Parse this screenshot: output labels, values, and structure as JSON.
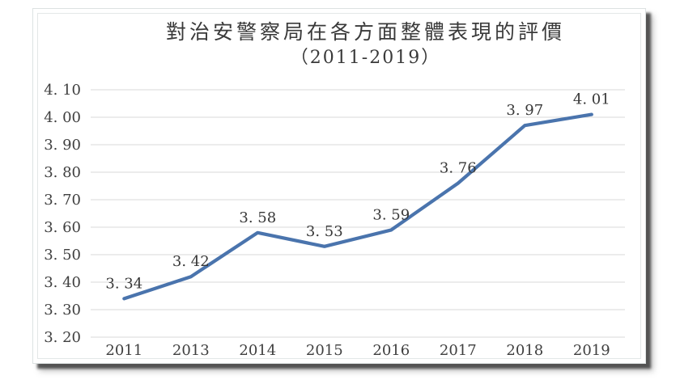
{
  "chart_data": {
    "type": "line",
    "title": "對治安警察局在各方面整體表現的評價",
    "subtitle": "（2011-2019）",
    "categories": [
      "2011",
      "2013",
      "2014",
      "2015",
      "2016",
      "2017",
      "2018",
      "2019"
    ],
    "values": [
      3.34,
      3.42,
      3.58,
      3.53,
      3.59,
      3.76,
      3.97,
      4.01
    ],
    "point_labels": [
      "3. 34",
      "3. 42",
      "3. 58",
      "3. 53",
      "3. 59",
      "3. 76",
      "3. 97",
      "4. 01"
    ],
    "y_ticks": [
      3.2,
      3.3,
      3.4,
      3.5,
      3.6,
      3.7,
      3.8,
      3.9,
      4.0,
      4.1
    ],
    "y_tick_labels": [
      "3. 20",
      "3. 30",
      "3. 40",
      "3. 50",
      "3. 60",
      "3. 70",
      "3. 80",
      "3. 90",
      "4. 00",
      "4. 10"
    ],
    "ylim": [
      3.2,
      4.1
    ],
    "grid": "horizontal-only",
    "legend": "none",
    "markers": "none",
    "colors": {
      "line": "#4a74ad",
      "gridline": "#d9d9d9",
      "text": "#3f3f3f",
      "background": "#ffffff"
    }
  }
}
